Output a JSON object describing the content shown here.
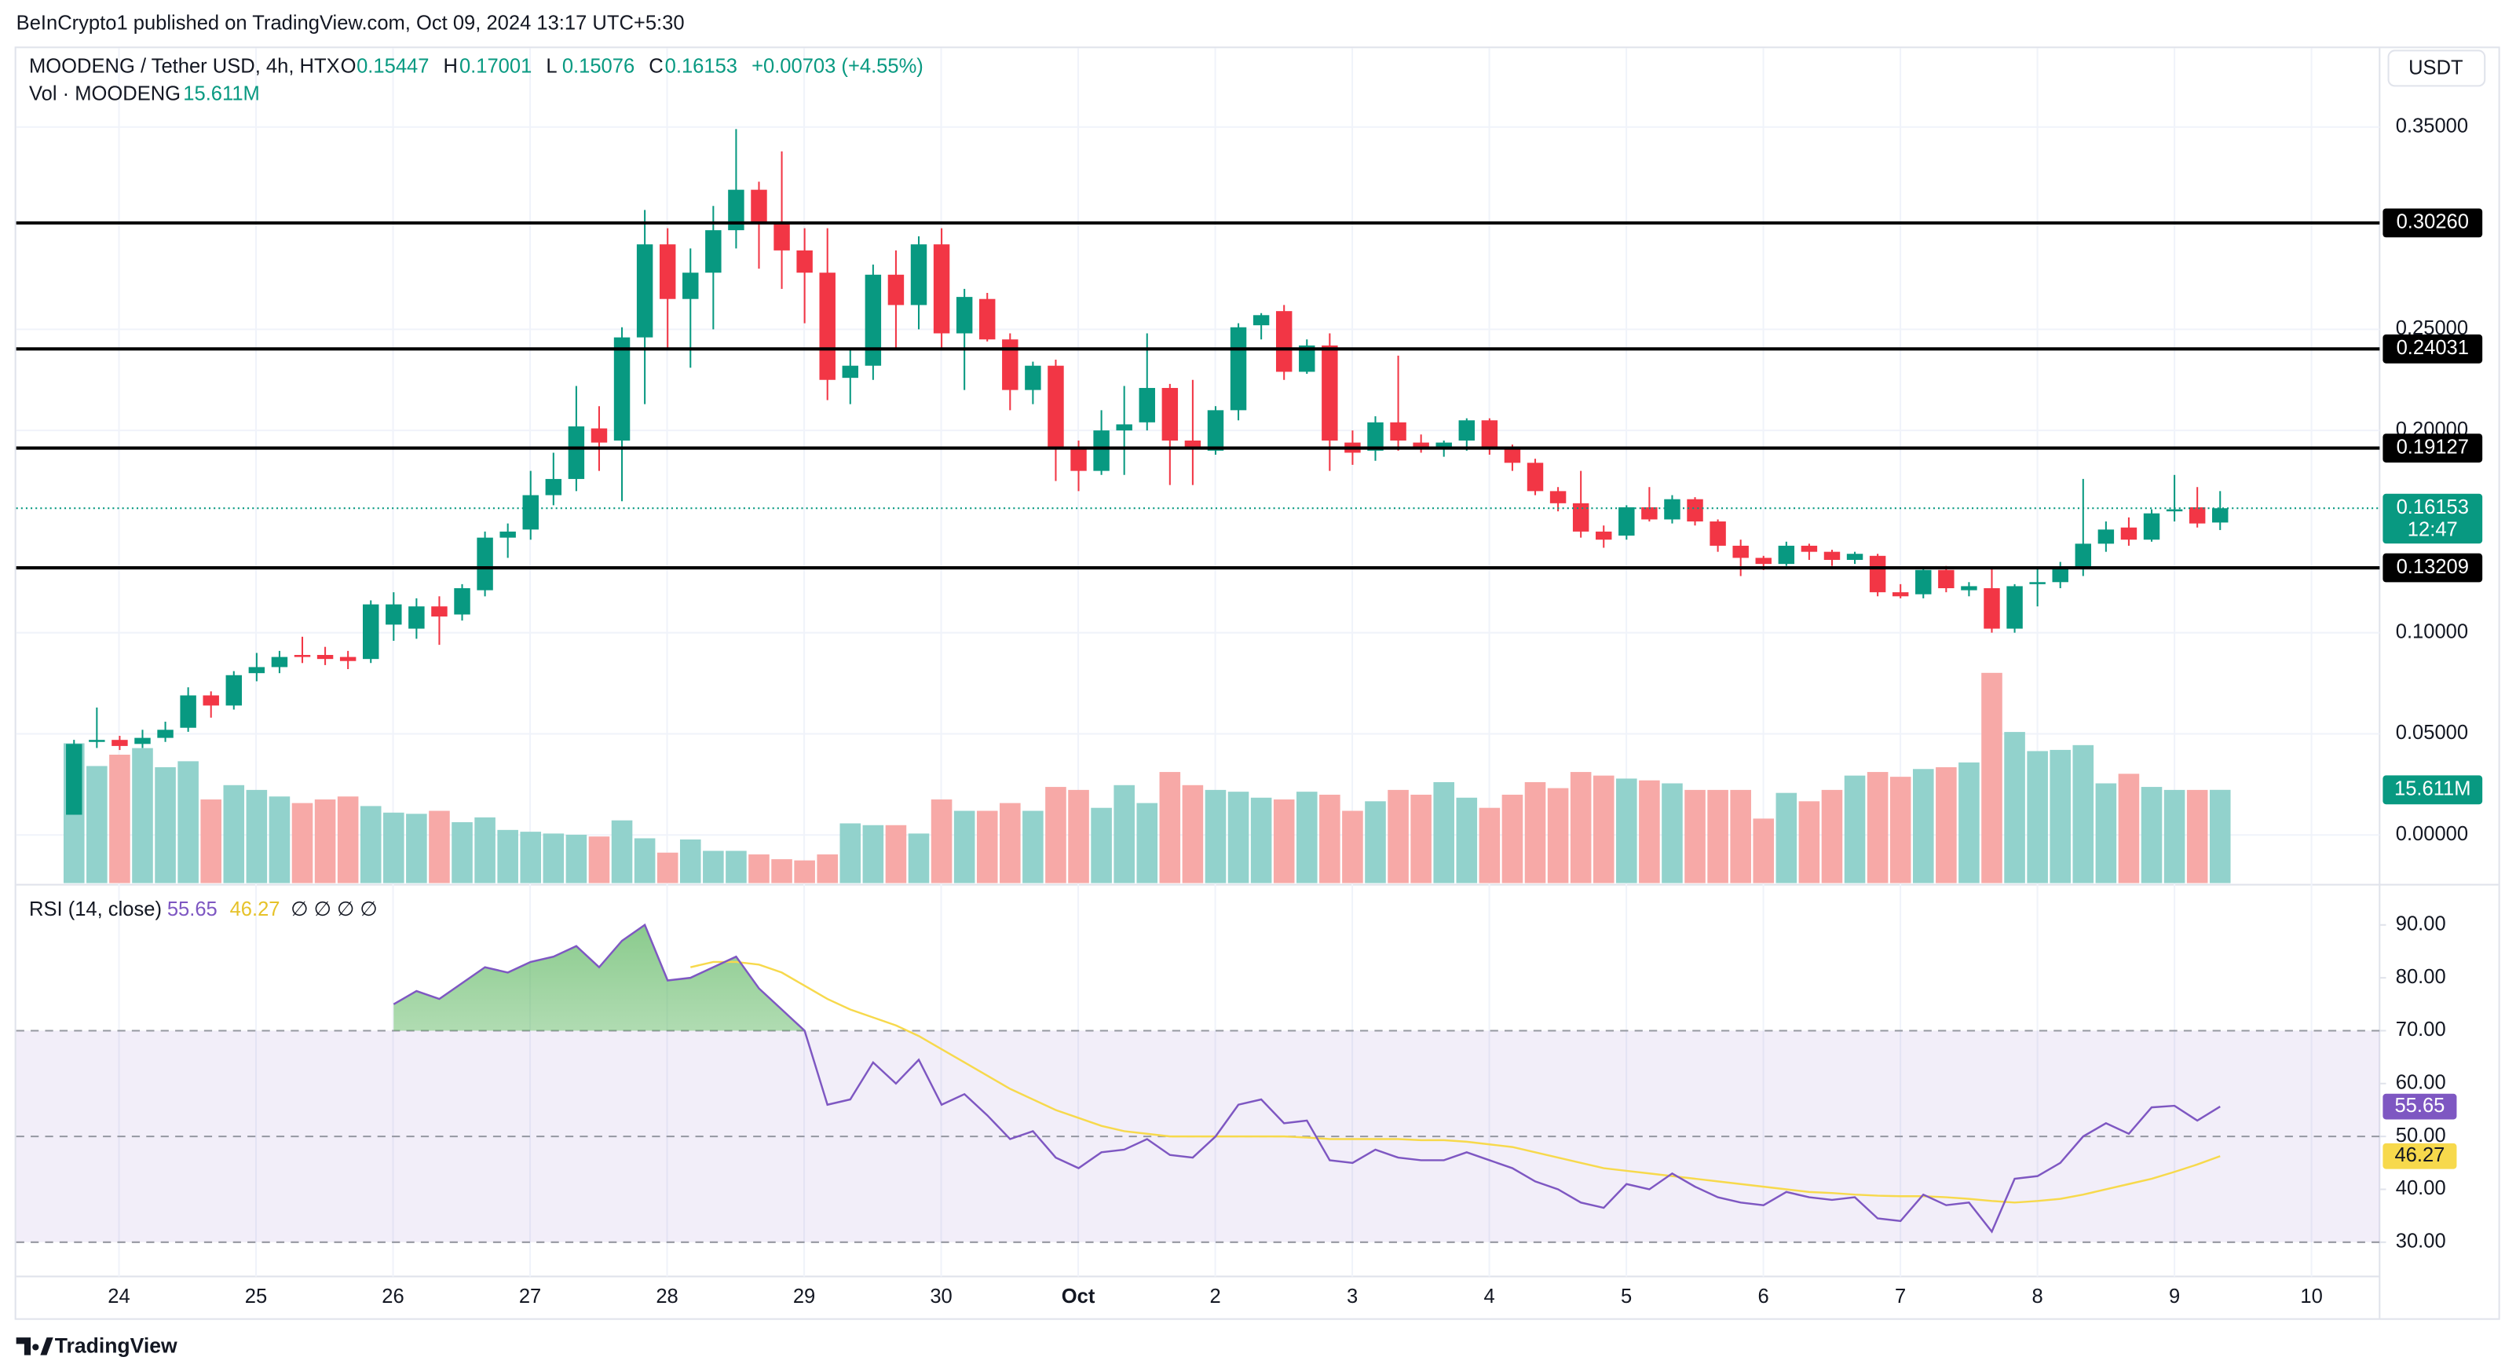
{
  "header": {
    "publisher": "BeInCrypto1 published on TradingView.com, Oct 09, 2024 13:17 UTC+5:30",
    "symbol": "MOODENG / Tether USD, 4h, HTX",
    "o": "O",
    "h": "H",
    "l": "L",
    "c": "C",
    "change": "+0.00703 (+4.55%)",
    "volume_title": "Vol · MOODENG",
    "rsi_title": "RSI (14, close)",
    "rsi_icons": "∅ ∅ ∅ ∅",
    "currency": "USDT",
    "countdown": "12:47",
    "brand": "TradingView"
  },
  "chart_data": {
    "type": "candlestick",
    "colors": {
      "up": "#089981",
      "down": "#f23645",
      "up_volume": "#92d2cc",
      "down_volume": "#f7a9a7",
      "level": "#000000"
    },
    "open": [
      0.01,
      0.046,
      0.047,
      0.045,
      0.048,
      0.053,
      0.069,
      0.064,
      0.08,
      0.083,
      0.089,
      0.089,
      0.088,
      0.087,
      0.104,
      0.102,
      0.113,
      0.109,
      0.121,
      0.147,
      0.151,
      0.168,
      0.176,
      0.201,
      0.195,
      0.246,
      0.292,
      0.265,
      0.278,
      0.299,
      0.319,
      0.303,
      0.289,
      0.278,
      0.226,
      0.232,
      0.277,
      0.262,
      0.292,
      0.248,
      0.265,
      0.245,
      0.22,
      0.232,
      0.192,
      0.18,
      0.2,
      0.204,
      0.221,
      0.195,
      0.19,
      0.21,
      0.252,
      0.259,
      0.229,
      0.242,
      0.194,
      0.19,
      0.204,
      0.194,
      0.192,
      0.195,
      0.205,
      0.192,
      0.184,
      0.17,
      0.164,
      0.15,
      0.148,
      0.162,
      0.156,
      0.166,
      0.155,
      0.143,
      0.137,
      0.134,
      0.143,
      0.14,
      0.136,
      0.138,
      0.12,
      0.119,
      0.131,
      0.121,
      0.122,
      0.102,
      0.124,
      0.125,
      0.132,
      0.144,
      0.152,
      0.146,
      0.16,
      0.162,
      0.15447
    ],
    "high": [
      0.047,
      0.063,
      0.049,
      0.052,
      0.056,
      0.073,
      0.071,
      0.081,
      0.09,
      0.091,
      0.098,
      0.093,
      0.091,
      0.116,
      0.12,
      0.117,
      0.118,
      0.124,
      0.15,
      0.154,
      0.18,
      0.189,
      0.222,
      0.212,
      0.251,
      0.309,
      0.3,
      0.29,
      0.311,
      0.349,
      0.323,
      0.338,
      0.3,
      0.3,
      0.24,
      0.282,
      0.289,
      0.296,
      0.3,
      0.27,
      0.268,
      0.248,
      0.234,
      0.235,
      0.195,
      0.21,
      0.222,
      0.248,
      0.223,
      0.225,
      0.212,
      0.253,
      0.258,
      0.262,
      0.245,
      0.248,
      0.2,
      0.207,
      0.237,
      0.198,
      0.195,
      0.206,
      0.206,
      0.193,
      0.186,
      0.172,
      0.18,
      0.153,
      0.163,
      0.172,
      0.168,
      0.167,
      0.156,
      0.146,
      0.138,
      0.145,
      0.144,
      0.141,
      0.14,
      0.139,
      0.124,
      0.132,
      0.133,
      0.125,
      0.132,
      0.124,
      0.132,
      0.135,
      0.176,
      0.155,
      0.157,
      0.161,
      0.178,
      0.172,
      0.17001
    ],
    "low": [
      0.01,
      0.043,
      0.042,
      0.043,
      0.046,
      0.051,
      0.058,
      0.062,
      0.076,
      0.08,
      0.085,
      0.084,
      0.082,
      0.085,
      0.096,
      0.097,
      0.094,
      0.106,
      0.118,
      0.137,
      0.146,
      0.163,
      0.17,
      0.18,
      0.165,
      0.213,
      0.24,
      0.231,
      0.25,
      0.29,
      0.28,
      0.27,
      0.253,
      0.215,
      0.213,
      0.225,
      0.24,
      0.25,
      0.24,
      0.22,
      0.244,
      0.21,
      0.213,
      0.175,
      0.17,
      0.178,
      0.178,
      0.2,
      0.173,
      0.173,
      0.188,
      0.205,
      0.245,
      0.225,
      0.228,
      0.18,
      0.183,
      0.185,
      0.19,
      0.189,
      0.187,
      0.19,
      0.188,
      0.18,
      0.168,
      0.16,
      0.147,
      0.142,
      0.146,
      0.155,
      0.154,
      0.153,
      0.14,
      0.128,
      0.131,
      0.133,
      0.136,
      0.133,
      0.134,
      0.118,
      0.117,
      0.117,
      0.12,
      0.118,
      0.1,
      0.1,
      0.113,
      0.122,
      0.128,
      0.14,
      0.143,
      0.145,
      0.155,
      0.152,
      0.15076
    ],
    "close": [
      0.045,
      0.047,
      0.044,
      0.048,
      0.052,
      0.069,
      0.064,
      0.079,
      0.083,
      0.088,
      0.088,
      0.087,
      0.086,
      0.114,
      0.114,
      0.113,
      0.108,
      0.122,
      0.147,
      0.15,
      0.168,
      0.176,
      0.202,
      0.194,
      0.246,
      0.292,
      0.265,
      0.278,
      0.299,
      0.319,
      0.303,
      0.289,
      0.278,
      0.225,
      0.232,
      0.277,
      0.262,
      0.292,
      0.248,
      0.266,
      0.245,
      0.22,
      0.232,
      0.192,
      0.18,
      0.2,
      0.203,
      0.221,
      0.195,
      0.191,
      0.21,
      0.251,
      0.257,
      0.229,
      0.242,
      0.195,
      0.189,
      0.204,
      0.195,
      0.192,
      0.194,
      0.205,
      0.192,
      0.184,
      0.17,
      0.164,
      0.15,
      0.146,
      0.162,
      0.156,
      0.166,
      0.155,
      0.143,
      0.137,
      0.134,
      0.143,
      0.14,
      0.136,
      0.139,
      0.12,
      0.118,
      0.131,
      0.122,
      0.123,
      0.102,
      0.123,
      0.125,
      0.132,
      0.144,
      0.151,
      0.146,
      0.159,
      0.161,
      0.154,
      0.16153
    ],
    "ylim": [
      -0.0238,
      0.389
    ],
    "yticks": [
      {
        "value": 0.35,
        "label": "0.35000"
      },
      {
        "value": 0.25,
        "label": "0.25000"
      },
      {
        "value": 0.2,
        "label": "0.20000"
      },
      {
        "value": 0.1,
        "label": "0.10000"
      },
      {
        "value": 0.05,
        "label": "0.05000"
      },
      {
        "value": 0,
        "label": "0.00000"
      }
    ],
    "levels": [
      {
        "value": 0.3026,
        "label": "0.30260"
      },
      {
        "value": 0.24031,
        "label": "0.24031"
      },
      {
        "value": 0.19127,
        "label": "0.19127"
      },
      {
        "value": 0.13209,
        "label": "0.13209"
      }
    ],
    "x_labels": [
      "24",
      "25",
      "26",
      "27",
      "28",
      "29",
      "30",
      "Oct",
      "2",
      "3",
      "4",
      "5",
      "6",
      "7",
      "8",
      "9",
      "10"
    ],
    "volume": {
      "values": [
        23.4,
        19.6,
        21.5,
        22.6,
        19.4,
        20.4,
        14,
        16.4,
        15.6,
        14.5,
        13.4,
        14,
        14.5,
        12.9,
        11.8,
        11.6,
        12.1,
        10.2,
        11,
        8.9,
        8.6,
        8.3,
        8.1,
        7.8,
        10.5,
        7.5,
        5.1,
        7.3,
        5.4,
        5.4,
        4.8,
        4,
        3.8,
        4.8,
        10,
        9.7,
        9.7,
        8.3,
        14,
        12.1,
        12.1,
        13.4,
        12.1,
        16.1,
        15.6,
        12.6,
        16.4,
        13.4,
        18.6,
        16.4,
        15.6,
        15.3,
        14.3,
        14,
        15.3,
        14.8,
        12.1,
        13.7,
        15.6,
        14.8,
        16.9,
        14.3,
        12.6,
        14.8,
        16.9,
        15.9,
        18.6,
        18,
        17.5,
        17.2,
        16.7,
        15.6,
        15.6,
        15.6,
        10.8,
        15.1,
        13.7,
        15.6,
        18,
        18.6,
        17.8,
        19.1,
        19.4,
        20.2,
        35.2,
        25.3,
        22.1,
        22.3,
        23.1,
        16.7,
        18.3,
        16.1,
        15.6,
        15.6,
        15.611
      ],
      "last_label": "15.611M"
    },
    "rsi": {
      "color": "#7e57c2",
      "ma_color": "#f7d94c",
      "ylim": [
        22,
        97
      ],
      "yticks": [
        {
          "value": 90,
          "label": "90.00"
        },
        {
          "value": 80,
          "label": "80.00"
        },
        {
          "value": 70,
          "label": "70.00"
        },
        {
          "value": 60,
          "label": "60.00"
        },
        {
          "value": 50,
          "label": "50.00"
        },
        {
          "value": 40,
          "label": "40.00"
        },
        {
          "value": 30,
          "label": "30.00"
        }
      ],
      "bands": [
        30,
        50,
        70
      ],
      "values": [
        null,
        null,
        null,
        null,
        null,
        null,
        null,
        null,
        null,
        null,
        null,
        null,
        null,
        null,
        75,
        77.5,
        76,
        79,
        82,
        81,
        83,
        84,
        86,
        82,
        87,
        90,
        79.5,
        80,
        82,
        84,
        78,
        74,
        70,
        56,
        57,
        64,
        60,
        64.5,
        56,
        58,
        54,
        49.5,
        51,
        46,
        44,
        47,
        47.5,
        49.5,
        46.5,
        46,
        50,
        56,
        57,
        52.5,
        53,
        45.5,
        45,
        47.5,
        46,
        45.5,
        45.5,
        47,
        45.5,
        44,
        41.5,
        40,
        37.5,
        36.5,
        41,
        40,
        43,
        40.5,
        38.5,
        37.5,
        37,
        39.5,
        38.5,
        38,
        38.5,
        34.5,
        34,
        39,
        37,
        37.5,
        32,
        42,
        42.5,
        45,
        50,
        52.5,
        50.5,
        55.5,
        55.8,
        53,
        55.65
      ],
      "ma": [
        null,
        null,
        null,
        null,
        null,
        null,
        null,
        null,
        null,
        null,
        null,
        null,
        null,
        null,
        null,
        null,
        null,
        null,
        null,
        null,
        null,
        null,
        null,
        null,
        null,
        null,
        null,
        82,
        83,
        83,
        82.5,
        81,
        78.5,
        76,
        74,
        72.5,
        71,
        69,
        66.5,
        64,
        61.5,
        59,
        57,
        55,
        53.5,
        52,
        51,
        50.5,
        50,
        50,
        50,
        50,
        50,
        50,
        49.8,
        49.5,
        49.5,
        49.5,
        49.5,
        49.3,
        49.3,
        49,
        48.5,
        48,
        47,
        46,
        45,
        44,
        43.5,
        43,
        42.5,
        42,
        41.5,
        41,
        40.5,
        40,
        39.5,
        39.3,
        39,
        38.8,
        38.7,
        38.7,
        38.5,
        38.2,
        37.8,
        37.5,
        37.8,
        38.2,
        39,
        40,
        41,
        42,
        43.3,
        44.7,
        46.27
      ]
    }
  }
}
